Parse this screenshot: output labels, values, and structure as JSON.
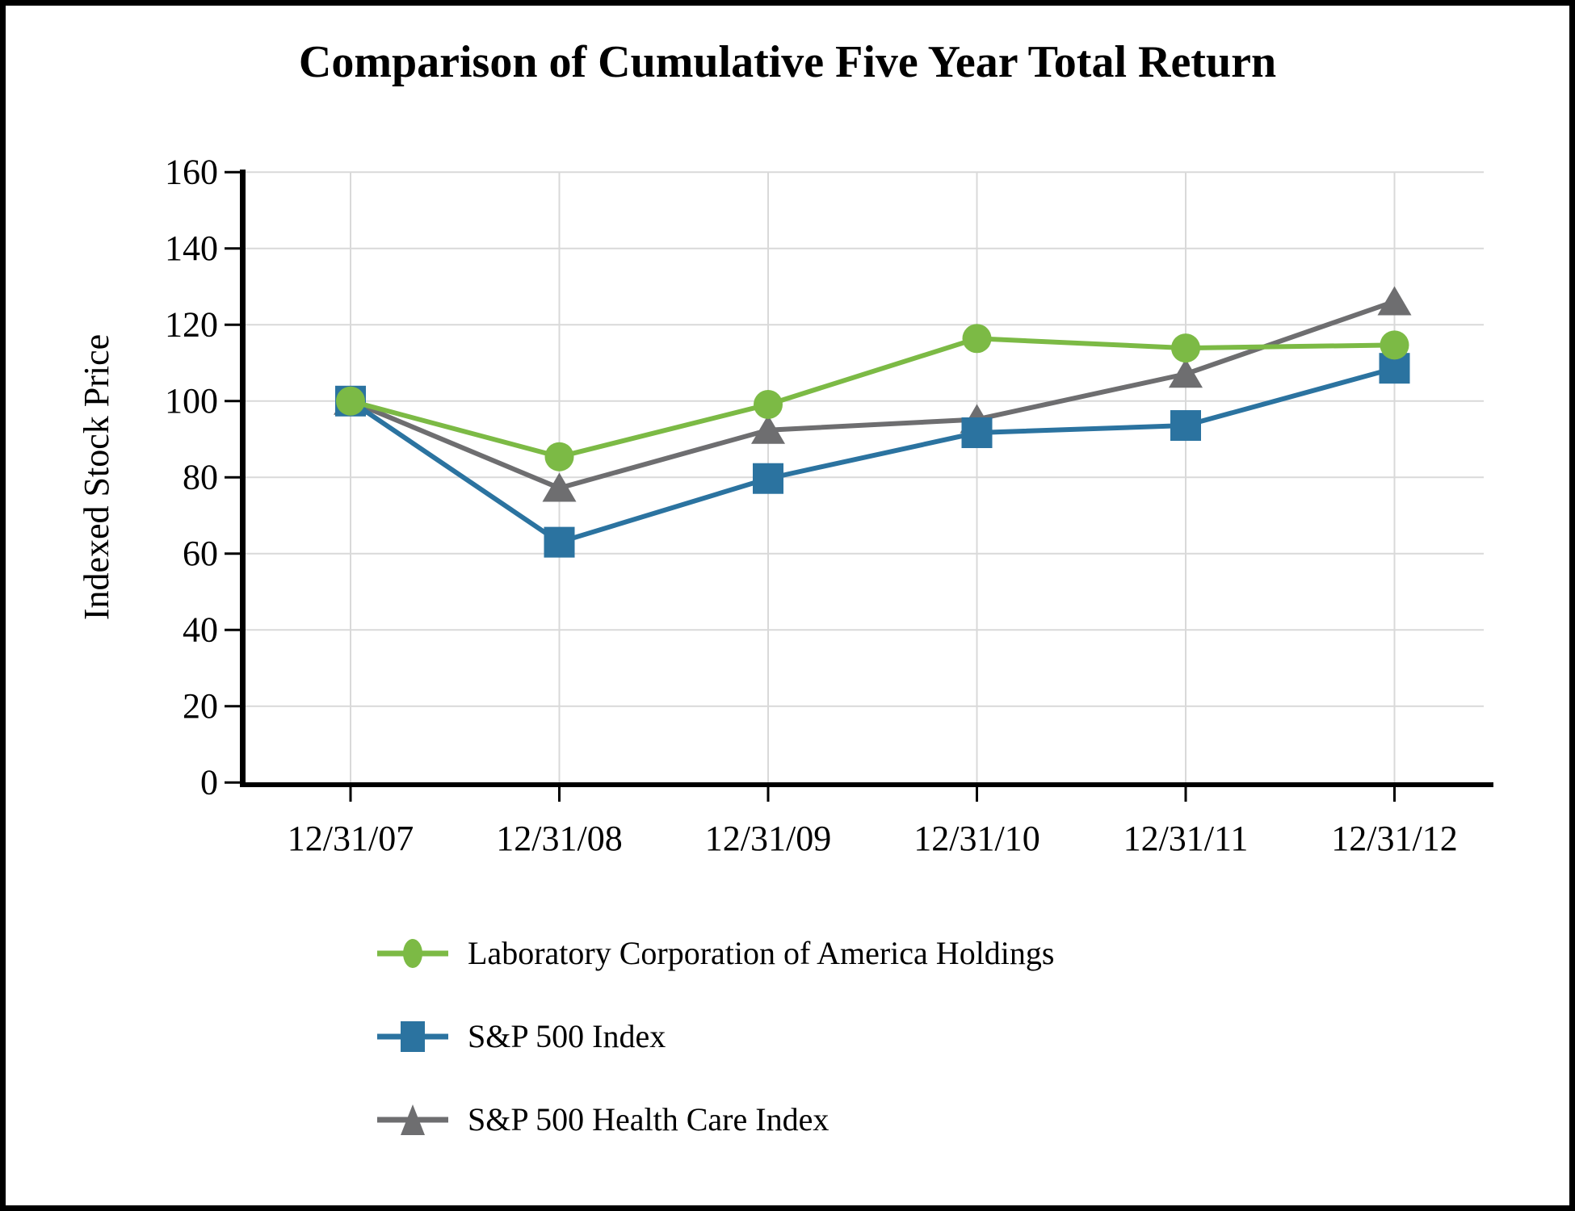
{
  "page": {
    "background": "#ffffff",
    "border_color": "#000000"
  },
  "chart_data": {
    "type": "line",
    "title": "Comparison of Cumulative Five Year Total Return",
    "ylabel": "Indexed Stock Price",
    "xlabel": "",
    "categories": [
      "12/31/07",
      "12/31/08",
      "12/31/09",
      "12/31/10",
      "12/31/11",
      "12/31/12"
    ],
    "series": [
      {
        "name": "Laboratory Corporation of America Holdings",
        "marker": "circle",
        "color": "#7CBA45",
        "values": [
          100,
          85.4,
          99.1,
          116.4,
          113.9,
          114.7
        ]
      },
      {
        "name": "S&P 500 Index",
        "marker": "square",
        "color": "#2B73A0",
        "values": [
          100,
          63.0,
          79.7,
          91.7,
          93.6,
          108.6
        ]
      },
      {
        "name": "S&P 500 Health Care Index",
        "marker": "triangle",
        "color": "#6E6E70",
        "values": [
          100,
          77.2,
          92.4,
          95.2,
          107.1,
          126.1
        ]
      }
    ],
    "ylim": [
      0,
      160
    ],
    "yticks": [
      0,
      20,
      40,
      60,
      80,
      100,
      120,
      140,
      160
    ],
    "grid": true,
    "gridline_color": "#D9D9D9",
    "axis_color": "#000000",
    "legend_position": "bottom-left"
  }
}
